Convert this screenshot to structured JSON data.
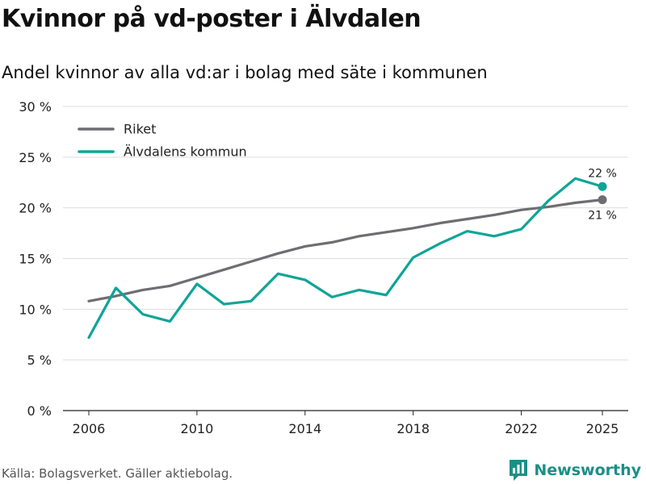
{
  "title": "Kvinnor på vd-poster i Älvdalen",
  "subtitle": "Andel kvinnor av alla vd:ar i bolag med säte i kommunen",
  "source": "Källa: Bolagsverket. Gäller aktiebolag.",
  "brand": {
    "name": "Newsworthy",
    "color": "#1b8f86"
  },
  "chart_data": {
    "type": "line",
    "x": [
      2006,
      2007,
      2008,
      2009,
      2010,
      2011,
      2012,
      2013,
      2014,
      2015,
      2016,
      2017,
      2018,
      2019,
      2020,
      2021,
      2022,
      2023,
      2024,
      2025
    ],
    "series": [
      {
        "name": "Riket",
        "color": "#6e6d72",
        "values": [
          10.8,
          11.3,
          11.9,
          12.3,
          13.1,
          13.9,
          14.7,
          15.5,
          16.2,
          16.6,
          17.2,
          17.6,
          18.0,
          18.5,
          18.9,
          19.3,
          19.8,
          20.1,
          20.5,
          20.8
        ],
        "end_label": "21 %"
      },
      {
        "name": "Älvdalens kommun",
        "color": "#0ea597",
        "values": [
          7.2,
          12.1,
          9.5,
          8.8,
          12.5,
          10.5,
          10.8,
          13.5,
          12.9,
          11.2,
          11.9,
          11.4,
          15.1,
          16.5,
          17.7,
          17.2,
          17.9,
          20.7,
          22.9,
          22.1
        ],
        "end_label": "22 %"
      }
    ],
    "x_ticks": [
      2006,
      2010,
      2014,
      2018,
      2022,
      2025
    ],
    "y_ticks": [
      0,
      5,
      10,
      15,
      20,
      25,
      30
    ],
    "y_tick_labels": [
      "0 %",
      "5 %",
      "10 %",
      "15 %",
      "20 %",
      "25 %",
      "30 %"
    ],
    "ylim": [
      0,
      30
    ],
    "xlim": [
      2006,
      2025
    ],
    "grid": true,
    "legend_position": "top-left",
    "xlabel": "",
    "ylabel": ""
  }
}
